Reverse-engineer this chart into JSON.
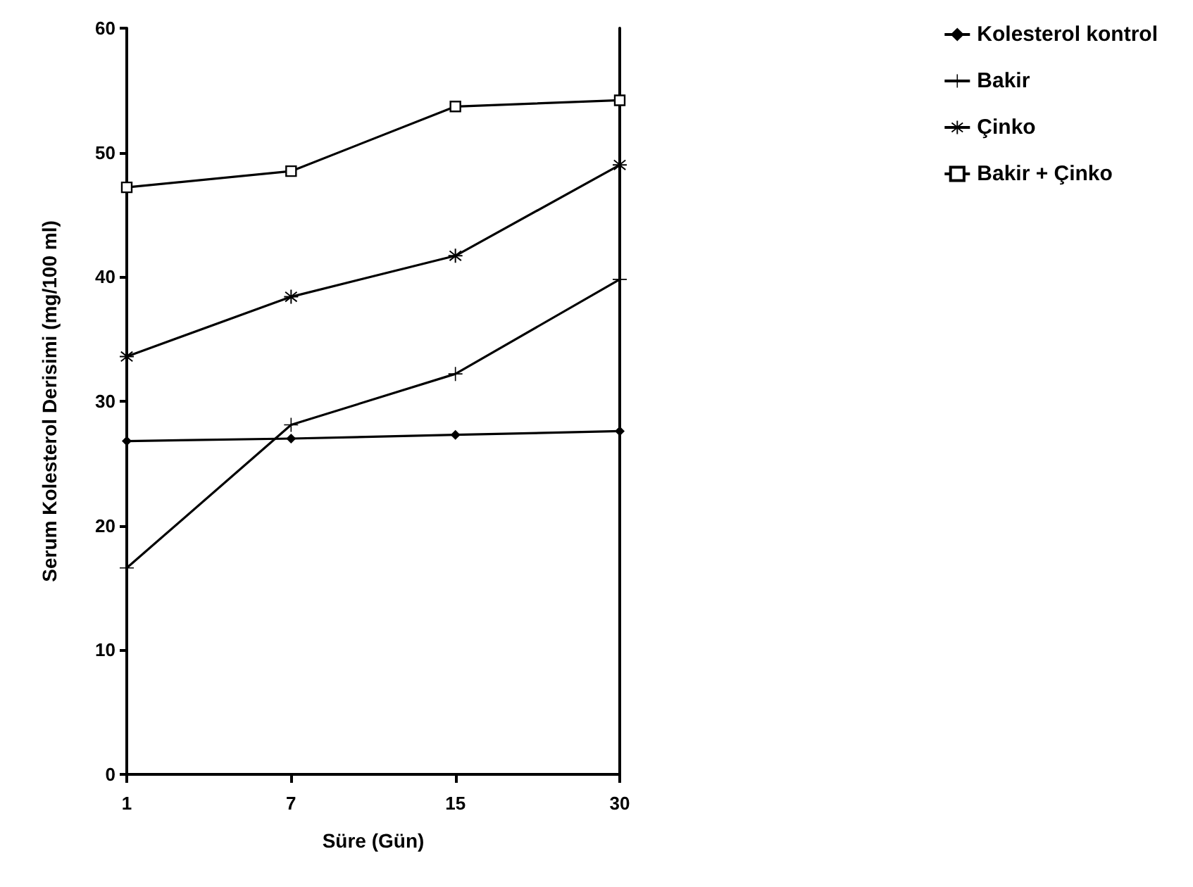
{
  "chart_data": {
    "type": "line",
    "xlabel": "Süre (Gün)",
    "ylabel": "Serum Kolesterol Derisimi (mg/100 ml)",
    "categories": [
      "1",
      "7",
      "15",
      "30"
    ],
    "series": [
      {
        "name": "Kolesterol kontrol",
        "color": "#000000",
        "marker": "diamond",
        "values": [
          26.8,
          27.0,
          27.3,
          27.6
        ]
      },
      {
        "name": "Bakir",
        "color": "#000000",
        "marker": "cross",
        "values": [
          16.6,
          28.1,
          32.2,
          39.8
        ]
      },
      {
        "name": "Çinko",
        "color": "#000000",
        "marker": "star",
        "values": [
          33.6,
          38.4,
          41.7,
          49.0
        ]
      },
      {
        "name": "Bakir + Çinko",
        "color": "#000000",
        "marker": "square",
        "values": [
          47.2,
          48.5,
          53.7,
          54.2
        ]
      }
    ],
    "ylim": [
      0,
      60
    ],
    "yticks": [
      0,
      10,
      20,
      30,
      40,
      50,
      60
    ],
    "grid": false,
    "legend": "top right",
    "line_style": "solid"
  }
}
